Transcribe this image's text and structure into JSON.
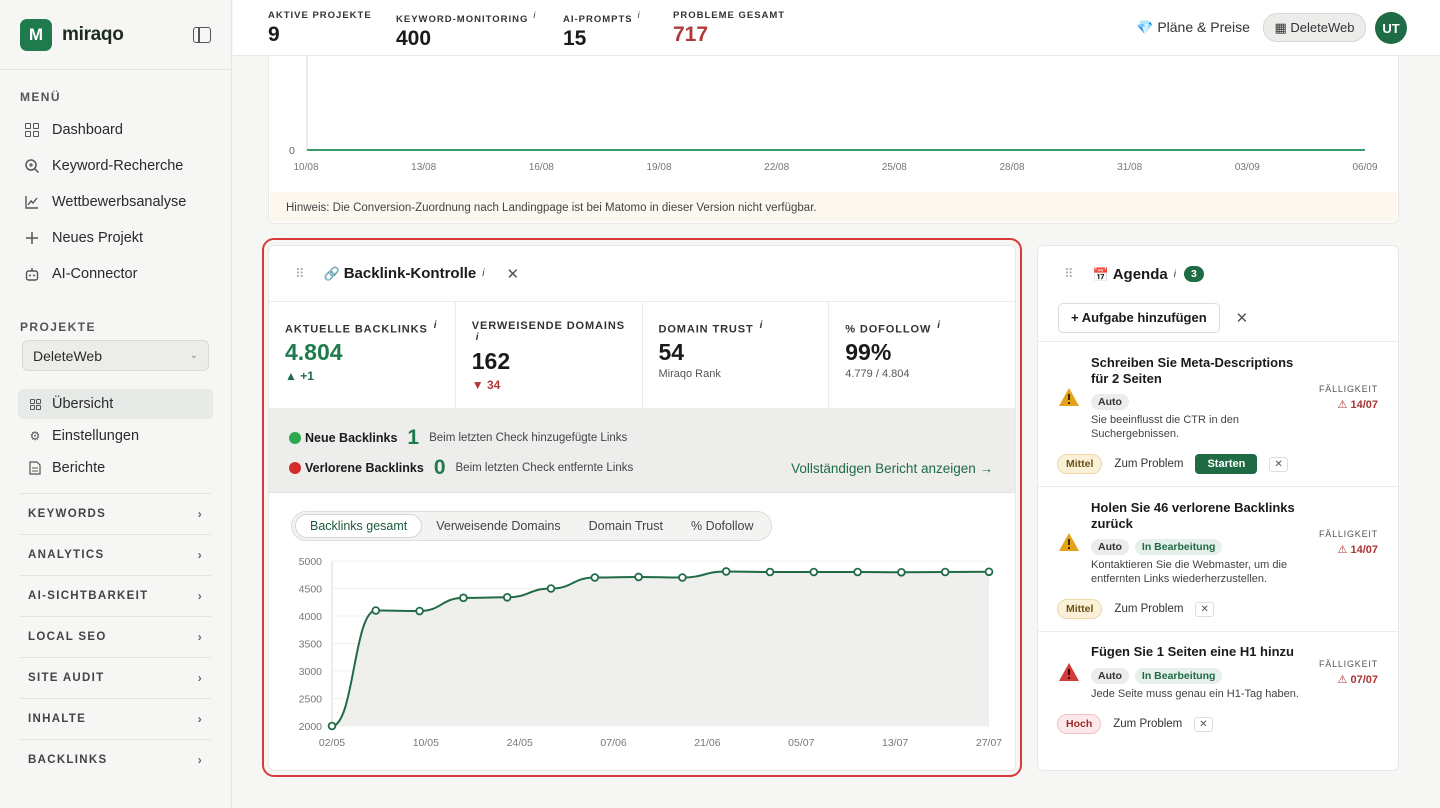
{
  "brand": {
    "logo_letter": "M",
    "name": "miraqo"
  },
  "sidebar": {
    "menu_label": "MENÜ",
    "menu": [
      {
        "label": "Dashboard",
        "icon": "grid-icon"
      },
      {
        "label": "Keyword-Recherche",
        "icon": "search-icon"
      },
      {
        "label": "Wettbewerbsanalyse",
        "icon": "chart-line-icon"
      },
      {
        "label": "Neues Projekt",
        "icon": "plus-icon"
      },
      {
        "label": "AI-Connector",
        "icon": "robot-icon"
      }
    ],
    "projects_label": "PROJEKTE",
    "project_selected": "DeleteWeb",
    "project_items": [
      {
        "label": "Übersicht",
        "icon": "grid-icon"
      },
      {
        "label": "Einstellungen",
        "icon": "gear-icon"
      },
      {
        "label": "Berichte",
        "icon": "document-icon"
      }
    ],
    "groups": [
      "KEYWORDS",
      "ANALYTICS",
      "AI-SICHTBARKEIT",
      "LOCAL SEO",
      "SITE AUDIT",
      "INHALTE",
      "BACKLINKS"
    ]
  },
  "topbar": {
    "stats": [
      {
        "label": "AKTIVE PROJEKTE",
        "value": "9",
        "info": false
      },
      {
        "label": "KEYWORD-MONITORING",
        "value": "400",
        "info": true
      },
      {
        "label": "AI-PROMPTS",
        "value": "15",
        "info": true
      },
      {
        "label": "PROBLEME GESAMT",
        "value": "717",
        "info": false,
        "color": "#b03a3a"
      }
    ],
    "plans_label": "💎 Pläne & Preise",
    "site_button": "▦ DeleteWeb",
    "avatar": "UT"
  },
  "top_chart": {
    "zero_label": "0",
    "x_labels": [
      "10/08",
      "13/08",
      "16/08",
      "19/08",
      "22/08",
      "25/08",
      "28/08",
      "31/08",
      "03/09",
      "06/09"
    ],
    "hint": "Hinweis: Die Conversion-Zuordnung nach Landingpage ist bei Matomo in dieser Version nicht verfügbar."
  },
  "backlinks": {
    "title": "Backlink-Kontrolle",
    "title_emoji": "🔗",
    "info": "i",
    "kpis": [
      {
        "label": "AKTUELLE BACKLINKS",
        "info": true,
        "value": "4.804",
        "delta": "▲ +1"
      },
      {
        "label": "VERWEISENDE DOMAINS",
        "info": true,
        "value": "162",
        "delta": "▼ 34"
      },
      {
        "label": "DOMAIN TRUST",
        "info": true,
        "value": "54",
        "sub": "Miraqo Rank"
      },
      {
        "label": "% DOFOLLOW",
        "info": true,
        "value": "99%",
        "sub": "4.779 / 4.804"
      }
    ],
    "new_label": "Neue Backlinks",
    "new_count": "1",
    "new_desc": "Beim letzten Check hinzugefügte Links",
    "lost_label": "Verlorene Backlinks",
    "lost_count": "0",
    "lost_desc": "Beim letzten Check entfernte Links",
    "report_link": "Vollständigen Bericht anzeigen →",
    "tabs": [
      "Backlinks gesamt",
      "Verweisende Domains",
      "Domain Trust",
      "% Dofollow"
    ],
    "active_tab": 0
  },
  "chart_data": [
    {
      "type": "line",
      "x": [
        "10/08",
        "13/08",
        "16/08",
        "19/08",
        "22/08",
        "25/08",
        "28/08",
        "31/08",
        "03/09",
        "06/09"
      ],
      "values": [
        0,
        0,
        0,
        0,
        0,
        0,
        0,
        0,
        0,
        0
      ],
      "y_labels": [
        "0"
      ],
      "color": "#3a9b6b"
    },
    {
      "type": "area",
      "x": [
        "02/05",
        "09/05",
        "10/05",
        "17/05",
        "24/05",
        "31/05",
        "07/06",
        "14/06",
        "21/06",
        "28/06",
        "05/07",
        "12/07",
        "13/07",
        "20/07",
        "27/07",
        "03/08"
      ],
      "x_labels": [
        "02/05",
        "10/05",
        "24/05",
        "07/06",
        "21/06",
        "05/07",
        "13/07",
        "27/07"
      ],
      "values": [
        2000,
        4100,
        4090,
        4330,
        4340,
        4500,
        4700,
        4710,
        4700,
        4810,
        4800,
        4800,
        4800,
        4795,
        4800,
        4804
      ],
      "ylim": [
        2000,
        5000
      ],
      "y_ticks": [
        "5000",
        "4500",
        "4000",
        "3500",
        "3000",
        "2500",
        "2000"
      ],
      "color": "#1f6b45"
    }
  ],
  "agenda": {
    "title": "Agenda",
    "title_emoji": "📅",
    "count": "3",
    "add_label": "+ Aufgabe hinzufügen",
    "due_label": "FÄLLIGKEIT",
    "tasks": [
      {
        "title": "Schreiben Sie Meta-Descriptions für 2 Seiten",
        "tags": [
          "Auto"
        ],
        "desc": "Sie beeinflusst die CTR in den Suchergebnissen.",
        "due": "⚠ 14/07",
        "priority": "Mittel",
        "action": "Zum Problem",
        "start": "Starten",
        "warn_color": "#e3a21a"
      },
      {
        "title": "Holen Sie 46 verlorene Backlinks zurück",
        "tags": [
          "Auto",
          "In Bearbeitung"
        ],
        "desc": "Kontaktieren Sie die Webmaster, um die entfernten Links wiederherzustellen.",
        "due": "⚠ 14/07",
        "priority": "Mittel",
        "action": "Zum Problem",
        "warn_color": "#e3a21a"
      },
      {
        "title": "Fügen Sie 1 Seiten eine H1 hinzu",
        "tags": [
          "Auto",
          "In Bearbeitung"
        ],
        "desc": "Jede Seite muss genau ein H1-Tag haben.",
        "due": "⚠ 07/07",
        "priority": "Hoch",
        "action": "Zum Problem",
        "warn_color": "#d33a3a"
      }
    ]
  },
  "colors": {
    "brand": "#1f7a4d",
    "danger": "#b03a3a",
    "highlight": "#d63a3a"
  }
}
